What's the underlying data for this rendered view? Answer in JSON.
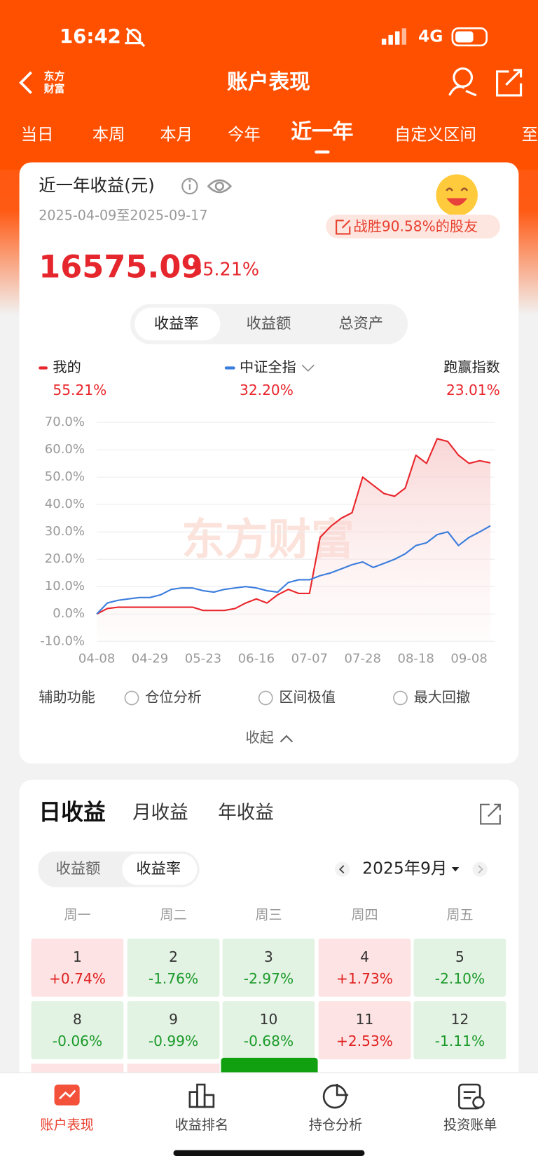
{
  "status": {
    "time": "16:42",
    "network": "4G"
  },
  "header": {
    "logo": [
      "东方",
      "财富"
    ],
    "title": "账户表现"
  },
  "tabs": {
    "items": [
      "当日",
      "本周",
      "本月",
      "今年",
      "近一年",
      "自定义区间",
      "至"
    ],
    "active": 4
  },
  "summary": {
    "title": "近一年收益(元)",
    "range": "2025-04-09至2025-09-17",
    "badge": "战胜90.58%的股友",
    "amount": "16575.09",
    "rate": "55.21%",
    "toggles": [
      "收益率",
      "收益额",
      "总资产"
    ],
    "active_toggle": 0
  },
  "chart_data": {
    "type": "line",
    "watermark": "东方财富",
    "categories": [
      "04-08",
      null,
      null,
      null,
      null,
      "04-29",
      null,
      null,
      null,
      null,
      "05-23",
      null,
      null,
      null,
      null,
      "06-16",
      null,
      null,
      null,
      null,
      "07-07",
      null,
      null,
      null,
      null,
      "07-28",
      null,
      null,
      null,
      null,
      "08-18",
      null,
      null,
      null,
      null,
      "09-08",
      null,
      null
    ],
    "series": [
      {
        "name": "我的",
        "color": "#e8262c",
        "latest": "55.21%",
        "values": [
          0,
          2,
          2.5,
          2.5,
          2.5,
          2.5,
          2.5,
          2.5,
          2.5,
          2.5,
          1.3,
          1.3,
          1.3,
          2,
          4,
          5.5,
          4,
          7,
          9,
          7.5,
          7.5,
          28,
          32,
          35,
          37,
          50,
          47,
          44,
          43,
          46,
          58,
          55,
          64,
          63,
          58,
          55,
          56,
          55.21
        ]
      },
      {
        "name": "中证全指",
        "color": "#3b7ddd",
        "latest": "32.20%",
        "values": [
          0,
          4,
          5,
          5.5,
          6,
          6,
          7,
          9,
          9.5,
          9.5,
          8.5,
          8,
          9,
          9.5,
          10,
          9.5,
          8.5,
          8,
          11.5,
          12.5,
          12.5,
          14,
          15,
          16.5,
          18,
          19,
          17,
          18.5,
          20,
          22,
          25,
          26,
          29,
          30,
          25,
          28,
          30,
          32.2
        ]
      }
    ],
    "excess": {
      "name": "跑赢指数",
      "value": "23.01%"
    },
    "ylim": [
      -10,
      70
    ],
    "yticks": [
      {
        "value": -10,
        "label": "-10.0%"
      },
      {
        "value": 0,
        "label": "0.0%"
      },
      {
        "value": 10,
        "label": "10.0%"
      },
      {
        "value": 20,
        "label": "20.0%"
      },
      {
        "value": 30,
        "label": "30.0%"
      },
      {
        "value": 40,
        "label": "40.0%"
      },
      {
        "value": 50,
        "label": "50.0%"
      },
      {
        "value": 60,
        "label": "60.0%"
      },
      {
        "value": 70,
        "label": "70.0%"
      }
    ],
    "grid": true
  },
  "tools": {
    "label": "辅助功能",
    "options": [
      "仓位分析",
      "区间极值",
      "最大回撤"
    ],
    "collapse": "收起"
  },
  "daily": {
    "tabs": [
      "日收益",
      "月收益",
      "年收益"
    ],
    "active_tab": 0,
    "toggles": [
      "收益额",
      "收益率"
    ],
    "active_toggle": 1,
    "month": "2025年9月",
    "weekdays": [
      "周一",
      "周二",
      "周三",
      "周四",
      "周五"
    ],
    "days": [
      [
        {
          "day": "1",
          "change": "+0.74%"
        },
        {
          "day": "2",
          "change": "-1.76%"
        },
        {
          "day": "3",
          "change": "-2.97%"
        },
        {
          "day": "4",
          "change": "+1.73%"
        },
        {
          "day": "5",
          "change": "-2.10%"
        }
      ],
      [
        {
          "day": "8",
          "change": "-0.06%"
        },
        {
          "day": "9",
          "change": "-0.99%"
        },
        {
          "day": "10",
          "change": "-0.68%"
        },
        {
          "day": "11",
          "change": "+2.53%"
        },
        {
          "day": "12",
          "change": "-1.11%"
        }
      ]
    ]
  },
  "nav": {
    "items": [
      "账户表现",
      "收益排名",
      "持仓分析",
      "投资账单"
    ],
    "active": 0
  }
}
